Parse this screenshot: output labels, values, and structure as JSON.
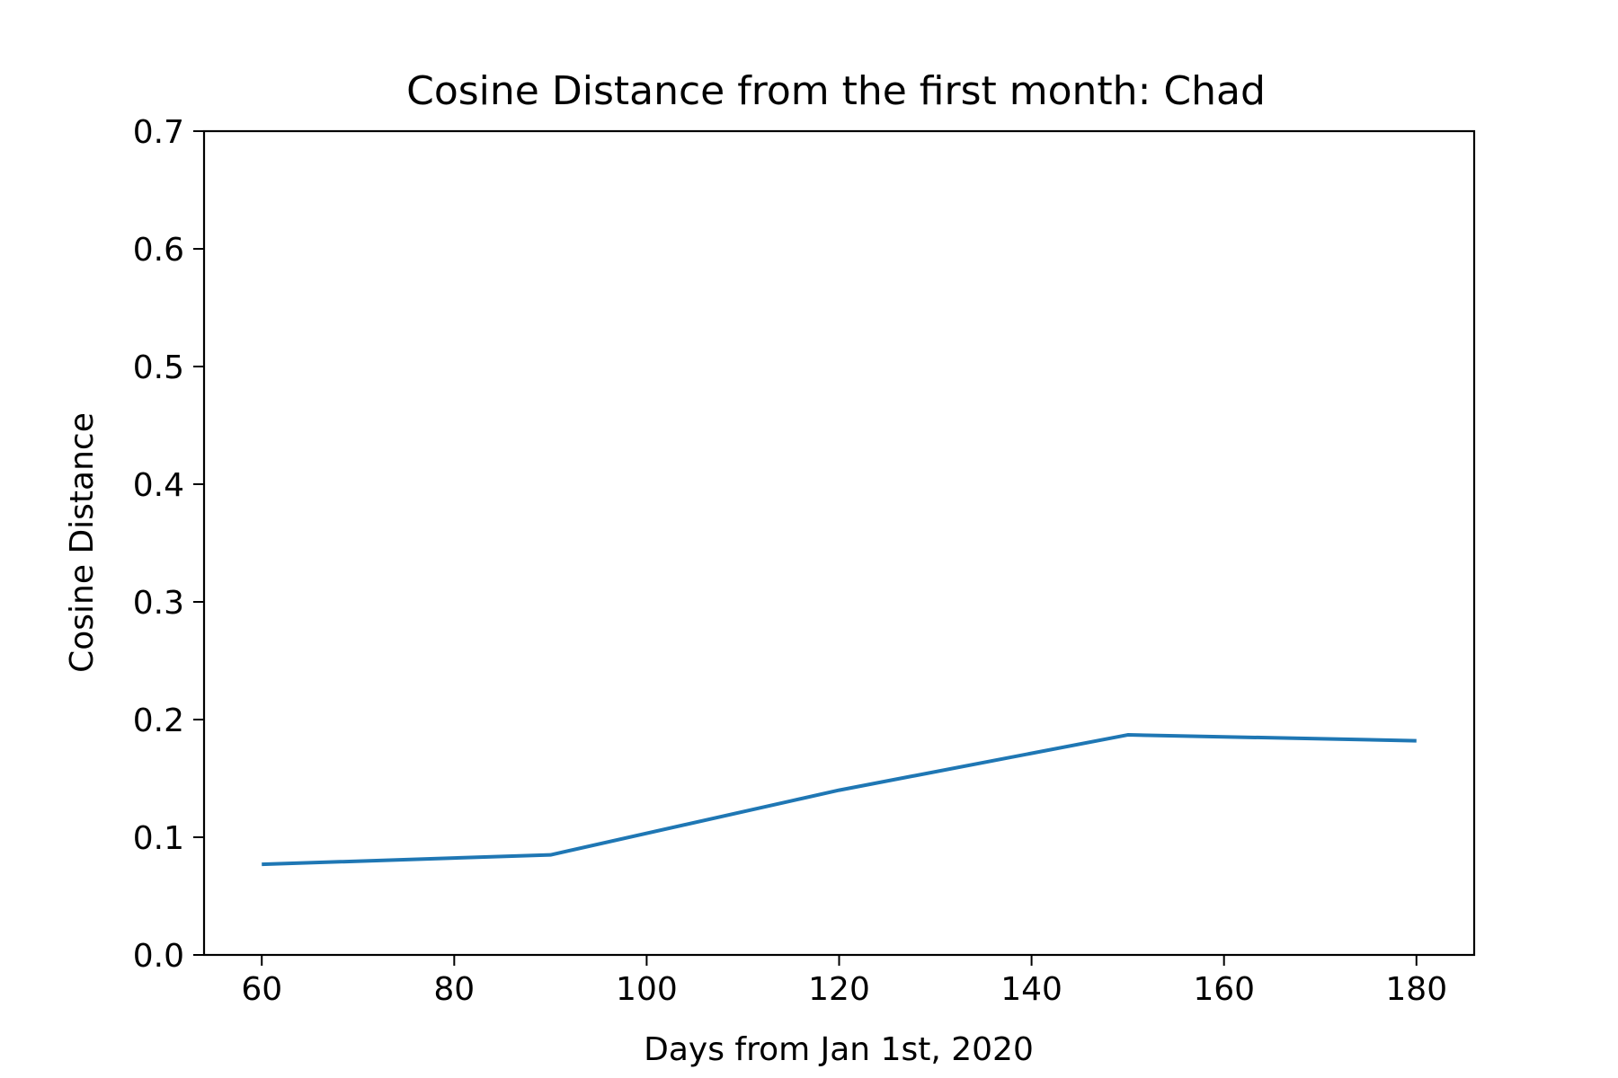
{
  "chart_data": {
    "type": "line",
    "title": "Cosine Distance from the first month: Chad",
    "xlabel": "Days from Jan 1st, 2020",
    "ylabel": "Cosine Distance",
    "xlim": [
      54,
      186
    ],
    "ylim": [
      0.0,
      0.7
    ],
    "xticks": [
      60,
      80,
      100,
      120,
      140,
      160,
      180
    ],
    "xtick_labels": [
      "60",
      "80",
      "100",
      "120",
      "140",
      "160",
      "180"
    ],
    "yticks": [
      0.0,
      0.1,
      0.2,
      0.3,
      0.4,
      0.5,
      0.6,
      0.7
    ],
    "ytick_labels": [
      "0.0",
      "0.1",
      "0.2",
      "0.3",
      "0.4",
      "0.5",
      "0.6",
      "0.7"
    ],
    "grid": false,
    "series": [
      {
        "color": "#1f77b4",
        "x": [
          60,
          90,
          120,
          150,
          180
        ],
        "y": [
          0.077,
          0.085,
          0.14,
          0.187,
          0.182
        ]
      }
    ]
  }
}
